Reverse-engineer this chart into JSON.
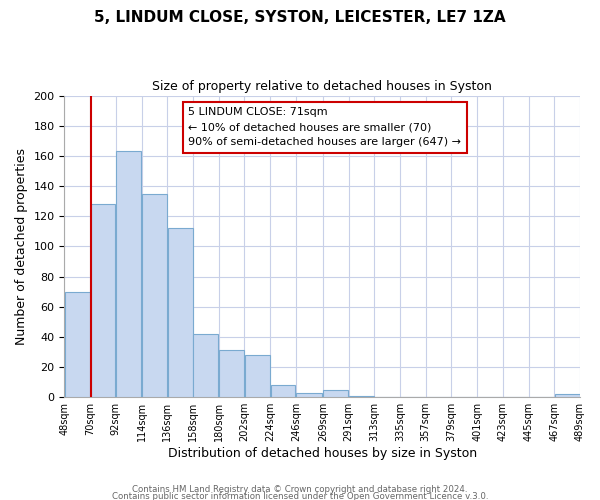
{
  "title": "5, LINDUM CLOSE, SYSTON, LEICESTER, LE7 1ZA",
  "subtitle": "Size of property relative to detached houses in Syston",
  "xlabel": "Distribution of detached houses by size in Syston",
  "ylabel": "Number of detached properties",
  "bar_left_edges": [
    48,
    70,
    92,
    114,
    136,
    158,
    180,
    202,
    224,
    246,
    269,
    291,
    313,
    335,
    357,
    379,
    401,
    423,
    445,
    467
  ],
  "bar_heights": [
    70,
    128,
    163,
    135,
    112,
    42,
    31,
    28,
    8,
    3,
    5,
    1,
    0,
    0,
    0,
    0,
    0,
    0,
    0,
    2
  ],
  "bar_widths": [
    22,
    22,
    22,
    22,
    22,
    22,
    22,
    22,
    22,
    23,
    22,
    22,
    22,
    22,
    22,
    22,
    22,
    22,
    22,
    22
  ],
  "bar_color": "#c8d8f0",
  "bar_edgecolor": "#7aaad0",
  "tick_labels": [
    "48sqm",
    "70sqm",
    "92sqm",
    "114sqm",
    "136sqm",
    "158sqm",
    "180sqm",
    "202sqm",
    "224sqm",
    "246sqm",
    "269sqm",
    "291sqm",
    "313sqm",
    "335sqm",
    "357sqm",
    "379sqm",
    "401sqm",
    "423sqm",
    "445sqm",
    "467sqm",
    "489sqm"
  ],
  "vline_x": 71,
  "vline_color": "#cc0000",
  "ylim": [
    0,
    200
  ],
  "yticks": [
    0,
    20,
    40,
    60,
    80,
    100,
    120,
    140,
    160,
    180,
    200
  ],
  "annotation_title": "5 LINDUM CLOSE: 71sqm",
  "annotation_line1": "← 10% of detached houses are smaller (70)",
  "annotation_line2": "90% of semi-detached houses are larger (647) →",
  "footer1": "Contains HM Land Registry data © Crown copyright and database right 2024.",
  "footer2": "Contains public sector information licensed under the Open Government Licence v.3.0.",
  "background_color": "#ffffff",
  "grid_color": "#c8d0e8"
}
